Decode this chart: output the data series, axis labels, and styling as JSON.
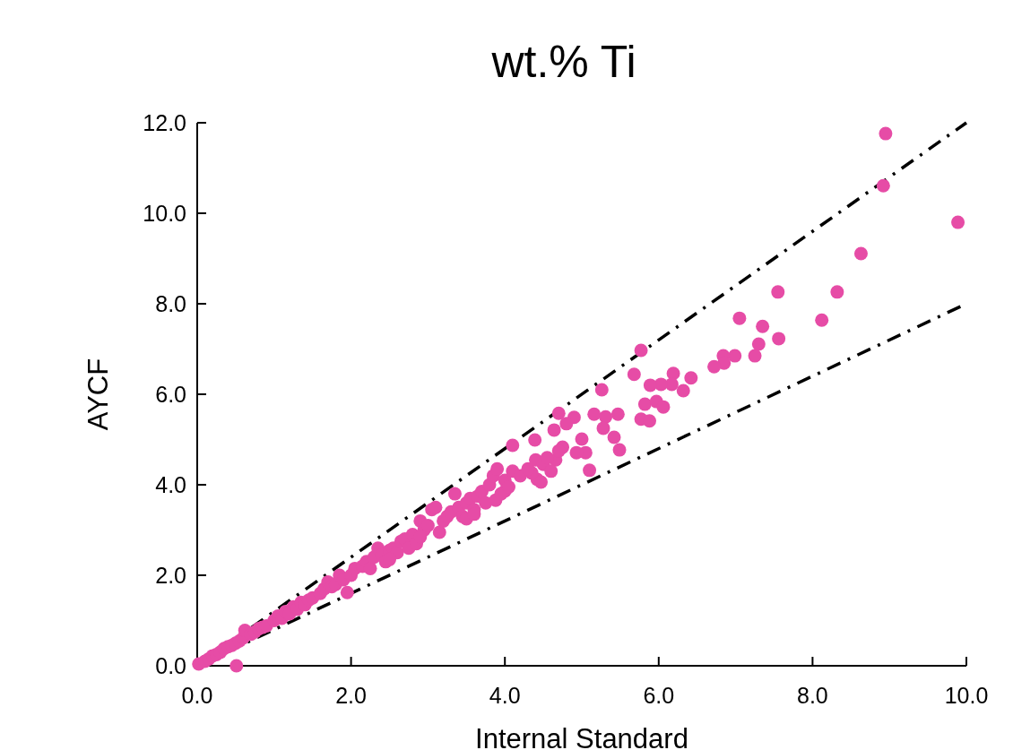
{
  "chart_data": {
    "type": "scatter",
    "title": "wt.% Ti",
    "xlabel": "Internal Standard",
    "ylabel": "AYCF",
    "xlim": [
      0,
      10
    ],
    "ylim": [
      0,
      12
    ],
    "xticks": [
      {
        "value": 0,
        "label": "0.0"
      },
      {
        "value": 2,
        "label": "2.0"
      },
      {
        "value": 4,
        "label": "4.0"
      },
      {
        "value": 6,
        "label": "6.0"
      },
      {
        "value": 8,
        "label": "8.0"
      },
      {
        "value": 10,
        "label": "10.0"
      }
    ],
    "yticks": [
      {
        "value": 0,
        "label": "0.0"
      },
      {
        "value": 2,
        "label": "2.0"
      },
      {
        "value": 4,
        "label": "4.0"
      },
      {
        "value": 6,
        "label": "6.0"
      },
      {
        "value": 8,
        "label": "8.0"
      },
      {
        "value": 10,
        "label": "10.0"
      },
      {
        "value": 12,
        "label": "12.0"
      }
    ],
    "grid": false,
    "series": [
      {
        "type": "line",
        "color": "#000000",
        "line_style": "dashed",
        "marker": "none",
        "x": [
          0,
          10
        ],
        "values": [
          0,
          12
        ]
      },
      {
        "type": "line",
        "color": "#000000",
        "line_style": "dashed",
        "marker": "none",
        "x": [
          0,
          10
        ],
        "values": [
          0,
          8
        ]
      },
      {
        "type": "scatter",
        "color": "#e64ca6",
        "marker": "circle",
        "x": [
          8.95,
          8.92,
          9.89,
          8.63,
          8.32,
          7.55,
          8.12,
          7.05,
          7.35,
          7.56,
          7.3,
          7.25,
          6.99,
          6.84,
          6.85,
          6.72,
          5.77,
          5.68,
          6.42,
          6.19,
          6.17,
          6.03,
          5.89,
          6.32,
          5.26,
          5.82,
          5.97,
          6.06,
          5.77,
          5.88,
          4.7,
          4.9,
          4.8,
          5.16,
          5.31,
          5.47,
          5.28,
          5.42,
          5.49,
          5.1,
          4.64,
          4.39,
          4.1,
          5.0,
          5.05,
          4.93,
          4.75,
          4.66,
          4.42,
          4.35,
          4.0,
          3.88,
          4.47,
          0.51,
          0.02,
          0.1,
          0.15,
          0.2,
          0.25,
          0.3,
          0.35,
          0.4,
          0.45,
          0.5,
          0.55,
          0.6,
          0.62,
          0.7,
          0.75,
          0.8,
          0.85,
          0.9,
          1.0,
          1.05,
          1.1,
          1.15,
          1.2,
          1.25,
          1.3,
          1.35,
          1.4,
          1.45,
          1.5,
          1.6,
          1.65,
          1.7,
          1.75,
          1.8,
          1.85,
          1.9,
          1.95,
          2.0,
          2.05,
          2.15,
          2.2,
          2.25,
          2.3,
          2.35,
          2.4,
          2.45,
          2.5,
          2.55,
          2.6,
          2.65,
          2.7,
          2.75,
          2.8,
          2.85,
          2.9,
          2.95,
          3.0,
          3.05,
          3.1,
          3.15,
          3.2,
          3.25,
          3.3,
          3.35,
          3.4,
          3.45,
          3.5,
          3.55,
          3.6,
          3.65,
          3.7,
          3.75,
          3.8,
          3.85,
          3.9,
          3.95,
          4.0,
          4.05,
          4.1,
          4.2,
          4.3,
          4.4,
          4.5,
          4.55,
          4.6,
          4.7,
          2.5,
          2.9,
          3.5,
          3.6
        ],
        "values": [
          11.76,
          10.61,
          9.8,
          9.11,
          8.26,
          8.26,
          7.64,
          7.68,
          7.5,
          7.23,
          7.11,
          6.85,
          6.85,
          6.85,
          6.69,
          6.61,
          6.97,
          6.44,
          6.36,
          6.46,
          6.22,
          6.22,
          6.2,
          6.08,
          6.1,
          5.78,
          5.84,
          5.72,
          5.45,
          5.41,
          5.58,
          5.49,
          5.35,
          5.56,
          5.5,
          5.56,
          5.25,
          5.05,
          4.77,
          4.32,
          5.21,
          4.99,
          4.87,
          5.01,
          4.71,
          4.71,
          4.83,
          4.55,
          4.12,
          4.26,
          3.86,
          3.66,
          4.06,
          0.0,
          0.04,
          0.1,
          0.15,
          0.22,
          0.25,
          0.3,
          0.38,
          0.42,
          0.45,
          0.5,
          0.55,
          0.62,
          0.78,
          0.7,
          0.75,
          0.82,
          0.85,
          0.88,
          1.0,
          1.1,
          1.05,
          1.2,
          1.15,
          1.3,
          1.25,
          1.4,
          1.35,
          1.45,
          1.5,
          1.6,
          1.7,
          1.85,
          1.75,
          1.8,
          2.0,
          1.9,
          1.62,
          2.0,
          2.15,
          2.2,
          2.3,
          2.15,
          2.4,
          2.6,
          2.45,
          2.3,
          2.55,
          2.6,
          2.5,
          2.75,
          2.8,
          2.6,
          2.9,
          2.7,
          3.2,
          3.0,
          3.1,
          3.45,
          3.5,
          2.95,
          3.2,
          3.3,
          3.4,
          3.8,
          3.5,
          3.3,
          3.6,
          3.7,
          3.45,
          3.75,
          3.85,
          3.6,
          4.0,
          4.2,
          4.35,
          3.8,
          4.1,
          3.95,
          4.3,
          4.2,
          4.35,
          4.55,
          4.45,
          4.6,
          4.3,
          4.75,
          2.35,
          2.85,
          3.25,
          3.35
        ]
      }
    ]
  }
}
